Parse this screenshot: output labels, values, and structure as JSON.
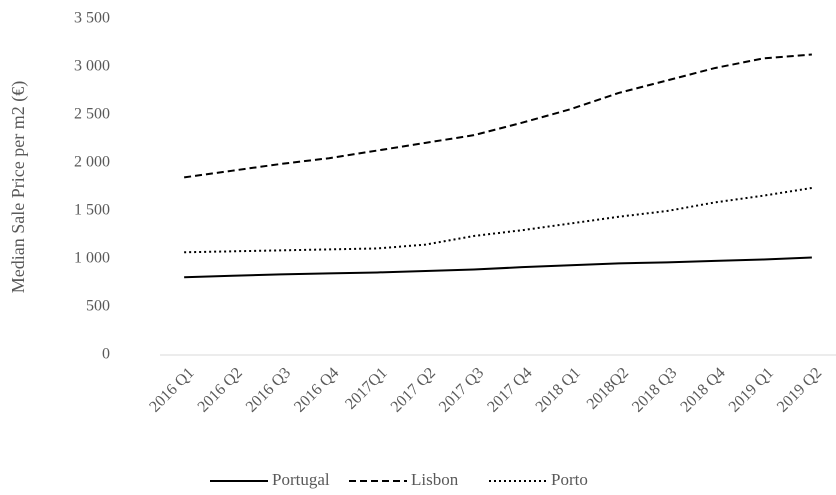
{
  "chart_data": {
    "type": "line",
    "y_label": "Median Sale Price per m2 (€)",
    "categories": [
      "2016 Q1",
      "2016 Q2",
      "2016 Q3",
      "2016 Q4",
      "2017Q1",
      "2017 Q2",
      "2017 Q3",
      "2017 Q4",
      "2018 Q1",
      "2018Q2",
      "2018 Q3",
      "2018 Q4",
      "2019 Q1",
      "2019 Q2"
    ],
    "series": [
      {
        "name": "Portugal",
        "color": "#000000",
        "dash": "solid",
        "values": [
          810,
          825,
          840,
          850,
          860,
          875,
          890,
          915,
          935,
          955,
          965,
          980,
          995,
          1015
        ]
      },
      {
        "name": "Lisbon",
        "color": "#000000",
        "dash": "dashed",
        "values": [
          1850,
          1920,
          1990,
          2050,
          2130,
          2210,
          2290,
          2420,
          2560,
          2730,
          2860,
          2990,
          3090,
          3130
        ]
      },
      {
        "name": "Porto",
        "color": "#000000",
        "dash": "dotted",
        "values": [
          1070,
          1080,
          1090,
          1100,
          1110,
          1150,
          1240,
          1300,
          1370,
          1440,
          1500,
          1590,
          1660,
          1740
        ]
      }
    ],
    "ylim": [
      0,
      3500
    ],
    "yticks": [
      0,
      500,
      {
        "value": 1000,
        "label": "1 000"
      },
      {
        "value": 1500,
        "label": "1 500"
      },
      {
        "value": 2000,
        "label": "2 000"
      },
      {
        "value": 2500,
        "label": "2 500"
      },
      {
        "value": 3000,
        "label": "3 000"
      },
      {
        "value": 3500,
        "label": "3 500"
      }
    ],
    "grid": false,
    "legend": "bottom"
  }
}
